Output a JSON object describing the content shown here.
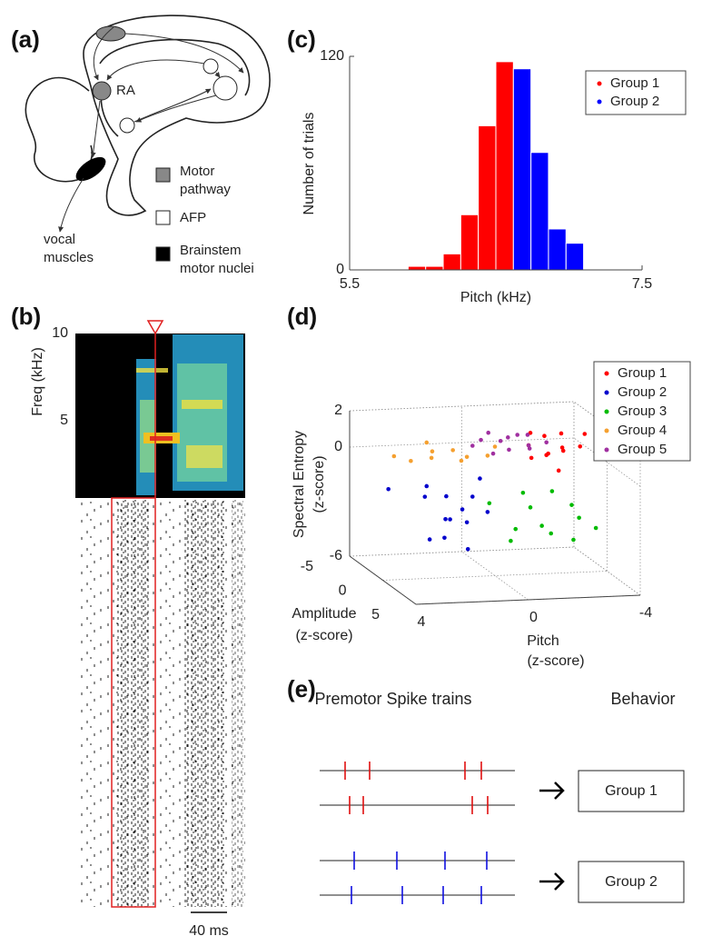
{
  "panel_labels": [
    "(a)",
    "(b)",
    "(c)",
    "(d)",
    "(e)"
  ],
  "panel_a": {
    "ra": "RA",
    "vocal_muscles": [
      "vocal",
      "muscles"
    ],
    "legend": [
      [
        "Motor",
        "pathway"
      ],
      [
        "AFP"
      ],
      [
        "Brainstem",
        "motor nuclei"
      ]
    ]
  },
  "panel_b": {
    "y_label": "Freq (kHz)",
    "y_ticks": [
      10,
      5
    ],
    "scale_bar": "40 ms"
  },
  "panel_e": {
    "left_header": "Premotor Spike trains",
    "right_header": "Behavior",
    "groups": [
      {
        "label": "Group 1",
        "color": "#e01010"
      },
      {
        "label": "Group 2",
        "color": "#1010e0"
      }
    ]
  },
  "chart_data": [
    {
      "type": "histogram",
      "xlabel": "Pitch (kHz)",
      "ylabel": "Number of trials",
      "bins": [
        5.9,
        6.02,
        6.14,
        6.26,
        6.38,
        6.5,
        6.62,
        6.74,
        6.86,
        6.98,
        7.1
      ],
      "series": [
        {
          "name": "Group 1",
          "color": "#ff0000",
          "values": [
            2,
            2,
            9,
            31,
            81,
            117,
            null,
            null,
            null,
            null
          ]
        },
        {
          "name": "Group 2",
          "color": "#0000ff",
          "values": [
            null,
            null,
            null,
            null,
            null,
            null,
            113,
            66,
            23,
            15
          ]
        }
      ],
      "xlim": [
        5.5,
        7.5
      ],
      "xticks": [
        5.5,
        7.5
      ],
      "ylim": [
        0,
        120
      ],
      "yticks": [
        0,
        120
      ],
      "legend": "upper right"
    },
    {
      "type": "scatter3d",
      "xlabel": [
        "Pitch",
        "(z-score)"
      ],
      "ylabel": [
        "Amplitude",
        "(z-score)"
      ],
      "zlabel": [
        "Spectral Entropy",
        "(z-score)"
      ],
      "xlim": [
        4,
        -4
      ],
      "xticks": [
        4,
        0,
        -4
      ],
      "ylim": [
        5,
        -5
      ],
      "yticks": [
        5,
        0,
        -5
      ],
      "zlim": [
        -6,
        2
      ],
      "zticks": [
        -6,
        0,
        2
      ],
      "grid": true,
      "legend": "upper right",
      "series": [
        {
          "name": "Group 1",
          "color": "#ff0000",
          "x": [
            -1.2,
            -1.6,
            -2.0,
            -2.4,
            -2.8,
            -1.5,
            -1.9,
            -2.2,
            -1.3,
            -2.6,
            -3.2,
            -1.8
          ],
          "y": [
            0,
            1,
            -1,
            0,
            1,
            -1,
            0,
            1,
            0,
            -1,
            0,
            2
          ],
          "z": [
            1.1,
            0.8,
            1.3,
            0.9,
            1.2,
            1.5,
            0.6,
            1.0,
            0.4,
            1.4,
            1.6,
            0.2
          ]
        },
        {
          "name": "Group 2",
          "color": "#0000cc",
          "x": [
            3.8,
            2.5,
            2.0,
            1.5,
            1.0,
            0.5,
            1.8,
            2.2,
            1.2,
            0.8,
            2.8,
            1.6,
            0.3,
            1.4
          ],
          "y": [
            0,
            0,
            1,
            -1,
            0,
            1,
            0,
            -1,
            1,
            0,
            2,
            0,
            -1,
            1
          ],
          "z": [
            -1.0,
            -1.5,
            -2.5,
            -1.8,
            -3.0,
            -2.2,
            -3.8,
            -1.2,
            -4.2,
            -1.6,
            -3.3,
            -2.8,
            -0.9,
            -2.0
          ]
        },
        {
          "name": "Group 3",
          "color": "#00bb00",
          "x": [
            0.2,
            -0.5,
            -1.0,
            -1.5,
            -2.0,
            -2.5,
            -3.0,
            -3.6,
            -0.8,
            -1.8,
            -2.8,
            -1.2
          ],
          "y": [
            0,
            1,
            0,
            -1,
            0,
            1,
            0,
            0,
            -1,
            1,
            0,
            2
          ],
          "z": [
            -2.0,
            -3.2,
            -1.5,
            -2.6,
            -3.8,
            -2.0,
            -3.0,
            -3.6,
            -4.4,
            -1.2,
            -4.2,
            -2.8
          ]
        },
        {
          "name": "Group 4",
          "color": "#f5a030",
          "x": [
            3.6,
            3.0,
            2.5,
            2.0,
            1.5,
            1.0,
            0.5,
            0.0,
            2.2,
            1.2
          ],
          "y": [
            0,
            0,
            1,
            -1,
            0,
            0,
            1,
            0,
            -1,
            0
          ],
          "z": [
            0.8,
            0.5,
            0.9,
            0.7,
            1.0,
            0.6,
            0.9,
            1.1,
            1.2,
            0.4
          ]
        },
        {
          "name": "Group 5",
          "color": "#a030a0",
          "x": [
            0.8,
            0.3,
            -0.2,
            -0.7,
            -1.2,
            -1.6,
            0.0,
            -0.5,
            -1.0,
            0.5,
            -1.4,
            -0.8
          ],
          "y": [
            0,
            1,
            0,
            -1,
            0,
            1,
            -1,
            0,
            1,
            0,
            -1,
            0
          ],
          "z": [
            1.2,
            1.0,
            1.4,
            1.3,
            1.1,
            1.5,
            1.6,
            0.9,
            1.2,
            1.5,
            1.4,
            1.7
          ]
        }
      ]
    }
  ]
}
